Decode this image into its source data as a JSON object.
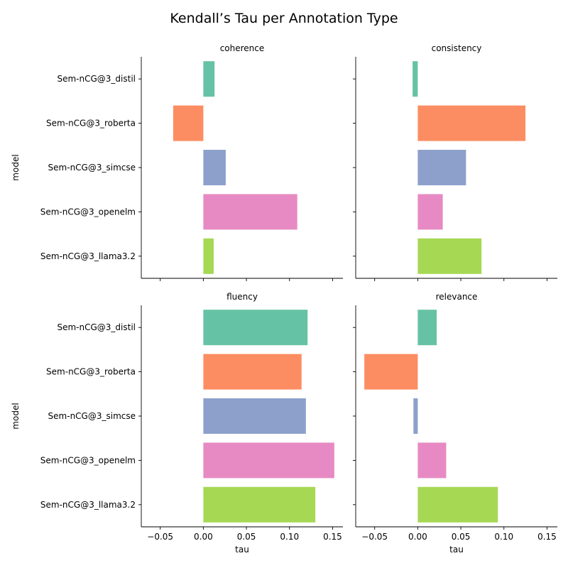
{
  "chart_data": {
    "type": "bar",
    "orientation": "horizontal",
    "title": "Kendall’s Tau per Annotation Type",
    "xlabel": "tau",
    "ylabel": "model",
    "xlim": [
      -0.072,
      0.162
    ],
    "xticks": [
      -0.05,
      0.0,
      0.05,
      0.1,
      0.15
    ],
    "xtick_labels": [
      "−0.05",
      "0.00",
      "0.05",
      "0.10",
      "0.15"
    ],
    "categories": [
      "Sem-nCG@3_distil",
      "Sem-nCG@3_roberta",
      "Sem-nCG@3_simcse",
      "Sem-nCG@3_openelm",
      "Sem-nCG@3_llama3.2"
    ],
    "colors": [
      "#66c2a5",
      "#fc8d62",
      "#8da0cb",
      "#e78ac3",
      "#a6d854"
    ],
    "grid": false,
    "panels": [
      {
        "name": "coherence",
        "values": [
          0.013,
          -0.035,
          0.026,
          0.109,
          0.012
        ]
      },
      {
        "name": "consistency",
        "values": [
          -0.006,
          0.125,
          0.056,
          0.029,
          0.074
        ]
      },
      {
        "name": "fluency",
        "values": [
          0.121,
          0.114,
          0.119,
          0.152,
          0.13
        ]
      },
      {
        "name": "relevance",
        "values": [
          0.022,
          -0.062,
          -0.005,
          0.033,
          0.093
        ]
      }
    ]
  }
}
